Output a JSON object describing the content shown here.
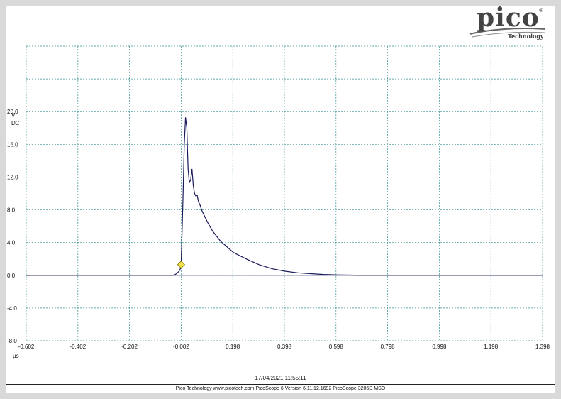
{
  "logo": {
    "brand": "pico",
    "reg": "®",
    "sub": "Technology"
  },
  "timestamp": "17/04/2021 11:55:11",
  "footer": "Pico Technology   www.picotech.com   PicoScope 6 Version 6.11.12.1692   PicoScope 3206D MSO",
  "colors": {
    "trace": "#1a1a5a",
    "grid": "#3a8f8f",
    "trigger": "#f2e24a"
  },
  "chart_data": {
    "type": "line",
    "title": "",
    "xlabel": "µs",
    "ylabel": "V",
    "ylabel2": "DC",
    "xlim": [
      -0.602,
      1.398
    ],
    "ylim": [
      -8.0,
      28.0
    ],
    "x_ticks": [
      "-0.602",
      "-0.402",
      "-0.202",
      "-0.002",
      "0.198",
      "0.398",
      "0.598",
      "0.798",
      "0.998",
      "1.198",
      "1.398"
    ],
    "y_ticks": [
      "20.0",
      "16.0",
      "12.0",
      "8.0",
      "4.0",
      "0.0",
      "-4.0",
      "-8.0"
    ],
    "grid": true,
    "trigger": {
      "x": -0.002,
      "y": 1.3
    },
    "series": [
      {
        "x": [
          -0.602,
          -0.03,
          -0.02,
          -0.01,
          -0.005,
          -0.002,
          0.0,
          0.005,
          0.01,
          0.015,
          0.02,
          0.025,
          0.03,
          0.035,
          0.04,
          0.045,
          0.05,
          0.055,
          0.06,
          0.065,
          0.07,
          0.08,
          0.1,
          0.12,
          0.15,
          0.2,
          0.25,
          0.3,
          0.35,
          0.4,
          0.45,
          0.5,
          0.55,
          0.6,
          0.65,
          0.7,
          1.398
        ],
        "y": [
          0.0,
          0.0,
          0.2,
          0.5,
          0.8,
          1.3,
          3.5,
          9.0,
          16.0,
          19.3,
          18.0,
          13.0,
          11.3,
          11.7,
          13.0,
          11.0,
          10.0,
          9.7,
          9.8,
          9.0,
          8.7,
          7.8,
          6.5,
          5.4,
          4.2,
          2.8,
          2.0,
          1.3,
          0.8,
          0.5,
          0.3,
          0.2,
          0.1,
          0.05,
          0.02,
          0.0,
          0.0
        ]
      }
    ]
  }
}
